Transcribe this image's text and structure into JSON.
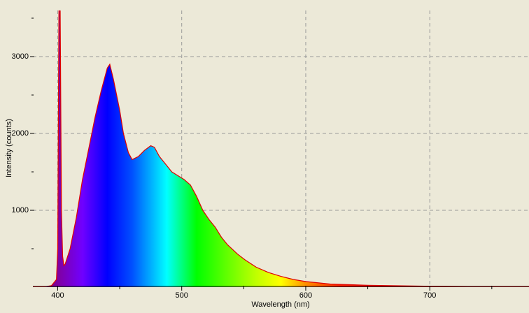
{
  "chart_data": {
    "type": "area",
    "x_label": "Wavelength (nm)",
    "y_label": "Intensity (counts)",
    "x": [
      380,
      390,
      395,
      399,
      400,
      401,
      402,
      403,
      404,
      405,
      406,
      410,
      415,
      420,
      425,
      430,
      435,
      440,
      442,
      445,
      450,
      453,
      457,
      460,
      465,
      470,
      475,
      478,
      482,
      487,
      492,
      497,
      502,
      507,
      512,
      517,
      522,
      527,
      532,
      537,
      545,
      551,
      560,
      570,
      580,
      590,
      600,
      620,
      650,
      700,
      750,
      780
    ],
    "values": [
      0,
      5,
      20,
      100,
      500,
      3600,
      3600,
      1000,
      400,
      280,
      300,
      500,
      900,
      1400,
      1800,
      2200,
      2550,
      2850,
      2900,
      2700,
      2300,
      2000,
      1750,
      1660,
      1700,
      1780,
      1840,
      1820,
      1700,
      1600,
      1500,
      1450,
      1400,
      1330,
      1180,
      1000,
      880,
      780,
      650,
      550,
      430,
      355,
      260,
      190,
      140,
      100,
      73,
      40,
      25,
      12,
      6,
      4
    ],
    "line_color": "#e00000",
    "xlim": [
      380,
      780
    ],
    "ylim": [
      0,
      3600
    ],
    "xticks": [
      400,
      500,
      600,
      700
    ],
    "yticks": [
      1000,
      2000,
      3000
    ],
    "x_minor_ticks": [
      450,
      550,
      650,
      750
    ],
    "y_minor_ticks": [
      500,
      1500,
      2500,
      3500
    ],
    "grid": true
  }
}
